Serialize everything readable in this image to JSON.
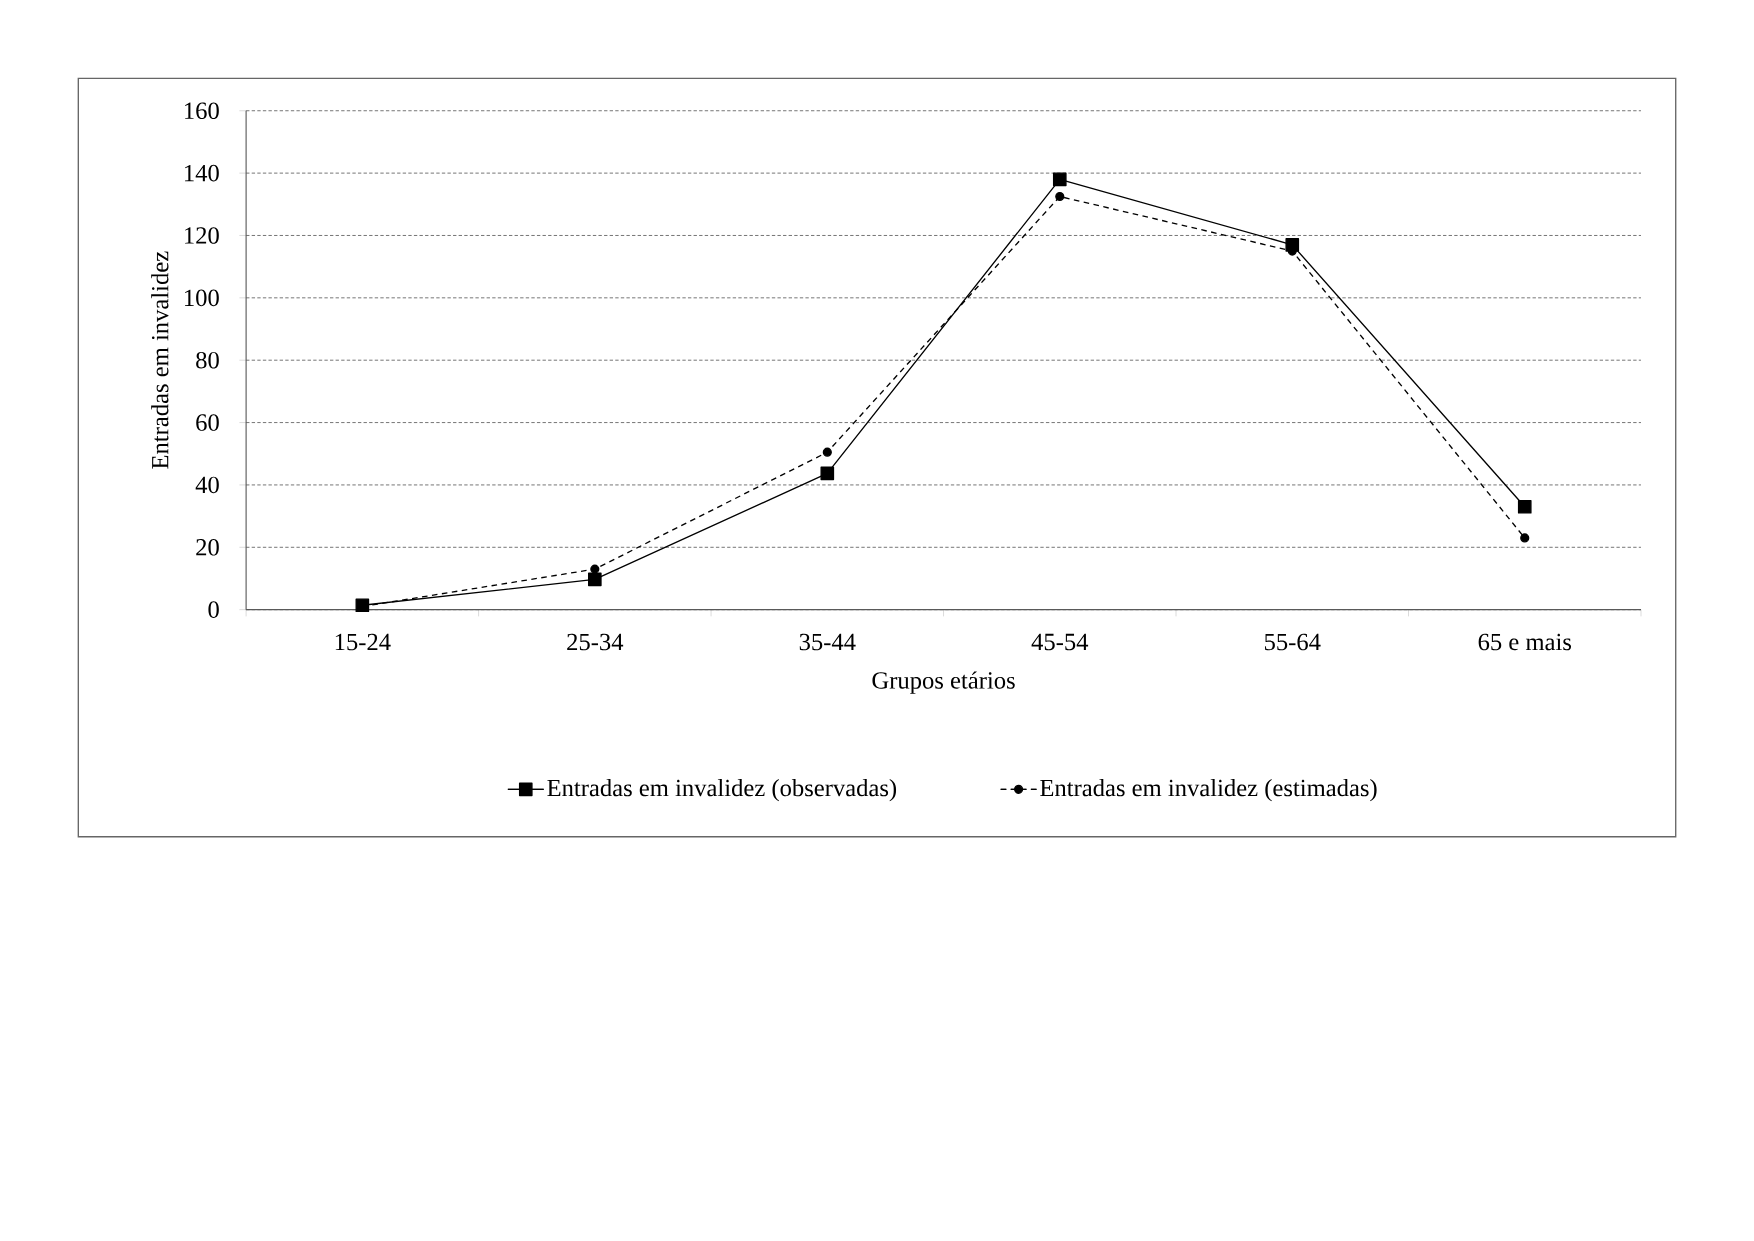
{
  "chart_data": {
    "type": "line",
    "xlabel": "Grupos etários",
    "ylabel": "Entradas em invalidez",
    "categories": [
      "15-24",
      "25-34",
      "35-44",
      "45-54",
      "55-64",
      "65 e mais"
    ],
    "series": [
      {
        "name": "Entradas em invalidez (observadas)",
        "color": "#000000",
        "marker": "square",
        "line_style": "solid",
        "values": [
          1.4,
          9.7,
          43.7,
          138,
          117,
          33
        ]
      },
      {
        "name": "Entradas em invalidez (estimadas)",
        "color": "#000000",
        "marker": "circle",
        "line_style": "dashed",
        "values": [
          1,
          13,
          50.5,
          132.5,
          115,
          23
        ]
      }
    ],
    "ylim": [
      0,
      160
    ],
    "yticks": [
      0,
      20,
      40,
      60,
      80,
      100,
      120,
      140,
      160
    ],
    "grid": "y",
    "legend": "bottom"
  }
}
